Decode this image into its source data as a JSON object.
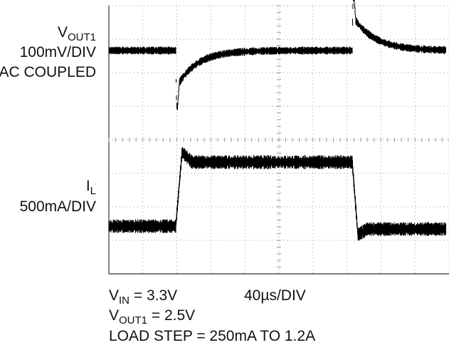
{
  "trace_labels": {
    "vout": {
      "symbol": "V",
      "subscript": "OUT1",
      "scale": "100mV/DIV",
      "coupling": "AC COUPLED"
    },
    "il": {
      "symbol": "I",
      "subscript": "L",
      "scale": "500mA/DIV"
    }
  },
  "conditions": {
    "vin": {
      "symbol": "V",
      "subscript": "IN",
      "text": " = 3.3V"
    },
    "timebase": "40µs/DIV",
    "vout": {
      "symbol": "V",
      "subscript": "OUT1",
      "text": " = 2.5V"
    },
    "load_step": "LOAD STEP = 250mA TO 1.2A"
  }
}
